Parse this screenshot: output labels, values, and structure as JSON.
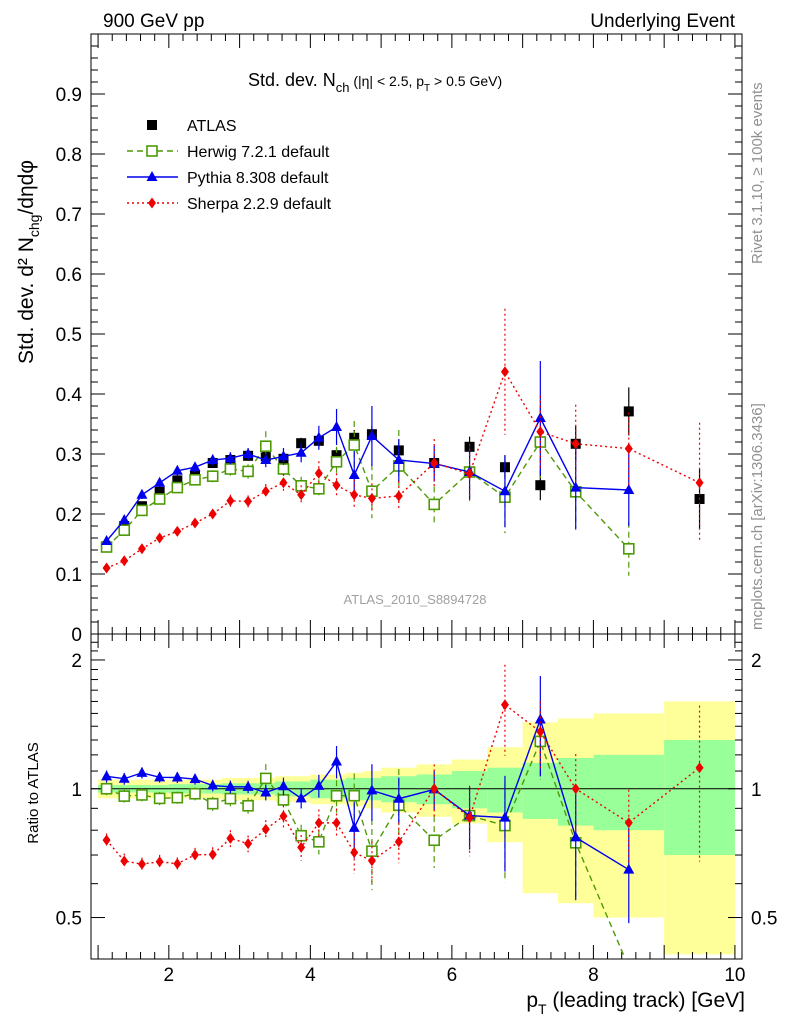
{
  "header": {
    "left": "900 GeV pp",
    "right": "Underlying Event"
  },
  "side_labels": {
    "top": "Rivet 3.1.10, ≥ 100k events",
    "bottom": "mcplots.cern.ch [arXiv:1306.3436]"
  },
  "watermark": "ATLAS_2010_S8894728",
  "chart_data": {
    "type": "scatter",
    "title": "Std. dev. N",
    "title_sub": "ch",
    "title_tail": " (|η| < 2.5, p",
    "title_sub2": "T",
    "title_tail2": " > 0.5 GeV)",
    "ylabel": "Std. dev. d² N",
    "ylabel_sub": "chg",
    "ylabel_tail": "/dηdφ",
    "xlabel": "p",
    "xlabel_sub": "T",
    "xlabel_tail": " (leading track) [GeV]",
    "ratio_ylabel": "Ratio to ATLAS",
    "xlim": [
      0.9,
      10.1
    ],
    "ylim": [
      0,
      1.0
    ],
    "ratio_ylim": [
      0.4,
      2.3
    ],
    "ratio_log": true,
    "xticks": [
      "2",
      "4",
      "6",
      "8",
      "10"
    ],
    "yticks": [
      "0",
      "0.1",
      "0.2",
      "0.3",
      "0.4",
      "0.5",
      "0.6",
      "0.7",
      "0.8",
      "0.9"
    ],
    "ratio_yticks": [
      "0.5",
      "1",
      "2"
    ],
    "x": [
      1.12,
      1.37,
      1.62,
      1.87,
      2.12,
      2.37,
      2.62,
      2.87,
      3.12,
      3.37,
      3.62,
      3.87,
      4.12,
      4.37,
      4.62,
      4.87,
      5.25,
      5.75,
      6.25,
      6.75,
      7.25,
      7.75,
      8.5,
      9.5
    ],
    "band_edges": [
      1.0,
      1.25,
      1.5,
      1.75,
      2.0,
      2.25,
      2.5,
      2.75,
      3.0,
      3.25,
      3.5,
      3.75,
      4.0,
      4.25,
      4.5,
      4.75,
      5.0,
      5.5,
      6.0,
      6.5,
      7.0,
      7.5,
      8.0,
      9.0,
      10.0
    ],
    "band_stat": [
      0.02,
      0.02,
      0.02,
      0.02,
      0.025,
      0.025,
      0.025,
      0.03,
      0.03,
      0.03,
      0.04,
      0.04,
      0.05,
      0.05,
      0.06,
      0.06,
      0.07,
      0.08,
      0.1,
      0.12,
      0.15,
      0.18,
      0.2,
      0.3
    ],
    "band_tot": [
      0.05,
      0.05,
      0.05,
      0.05,
      0.05,
      0.05,
      0.05,
      0.06,
      0.06,
      0.06,
      0.07,
      0.07,
      0.08,
      0.08,
      0.09,
      0.1,
      0.12,
      0.14,
      0.17,
      0.25,
      0.43,
      0.46,
      0.5,
      0.6
    ],
    "series": [
      {
        "name": "ATLAS",
        "color": "#000000",
        "marker": "square-filled",
        "line": "none",
        "y": [
          0.145,
          0.18,
          0.213,
          0.237,
          0.256,
          0.264,
          0.285,
          0.29,
          0.297,
          0.296,
          0.292,
          0.318,
          0.322,
          0.298,
          0.327,
          0.333,
          0.306,
          0.285,
          0.312,
          0.278,
          0.248,
          0.317,
          0.371,
          0.225
        ],
        "err": [
          0.003,
          0.004,
          0.004,
          0.004,
          0.005,
          0.005,
          0.005,
          0.006,
          0.006,
          0.007,
          0.008,
          0.009,
          0.01,
          0.012,
          0.013,
          0.014,
          0.012,
          0.015,
          0.017,
          0.02,
          0.025,
          0.03,
          0.04,
          0.05
        ]
      },
      {
        "name": "Herwig 7.2.1 default",
        "color": "#4e9a06",
        "marker": "square-open",
        "line": "dashed",
        "y": [
          0.145,
          0.173,
          0.206,
          0.225,
          0.244,
          0.257,
          0.263,
          0.275,
          0.271,
          0.313,
          0.275,
          0.247,
          0.242,
          0.287,
          0.315,
          0.238,
          0.28,
          0.216,
          0.27,
          0.228,
          0.32,
          0.237,
          0.142,
          null
        ],
        "err": [
          0.005,
          0.006,
          0.007,
          0.008,
          0.008,
          0.009,
          0.01,
          0.011,
          0.012,
          0.025,
          0.015,
          0.015,
          0.016,
          0.025,
          0.04,
          0.045,
          0.06,
          0.03,
          0.045,
          0.06,
          0.06,
          0.06,
          0.045,
          null
        ]
      },
      {
        "name": "Pythia 8.308 default",
        "color": "#0000ee",
        "marker": "triangle-filled",
        "line": "solid",
        "y": [
          0.155,
          0.19,
          0.232,
          0.252,
          0.272,
          0.278,
          0.29,
          0.293,
          0.3,
          0.29,
          0.296,
          0.302,
          0.327,
          0.345,
          0.265,
          0.33,
          0.29,
          0.284,
          0.27,
          0.238,
          0.36,
          0.244,
          0.24,
          null
        ],
        "err": [
          0.005,
          0.006,
          0.007,
          0.007,
          0.008,
          0.008,
          0.009,
          0.01,
          0.01,
          0.012,
          0.014,
          0.016,
          0.02,
          0.03,
          0.04,
          0.05,
          0.035,
          0.03,
          0.045,
          0.06,
          0.095,
          0.07,
          0.06,
          null
        ]
      },
      {
        "name": "Sherpa 2.2.9 default",
        "color": "#ee0000",
        "marker": "diamond-filled",
        "line": "dotted",
        "y": [
          0.11,
          0.122,
          0.142,
          0.16,
          0.171,
          0.185,
          0.2,
          0.222,
          0.221,
          0.238,
          0.252,
          0.232,
          0.268,
          0.248,
          0.232,
          0.226,
          0.23,
          0.285,
          0.267,
          0.437,
          0.337,
          0.317,
          0.309,
          0.252
        ],
        "err": [
          0.004,
          0.005,
          0.005,
          0.006,
          0.006,
          0.007,
          0.008,
          0.01,
          0.01,
          0.012,
          0.015,
          0.016,
          0.02,
          0.02,
          0.025,
          0.025,
          0.025,
          0.04,
          0.05,
          0.105,
          0.06,
          0.065,
          0.06,
          0.1
        ]
      }
    ]
  }
}
